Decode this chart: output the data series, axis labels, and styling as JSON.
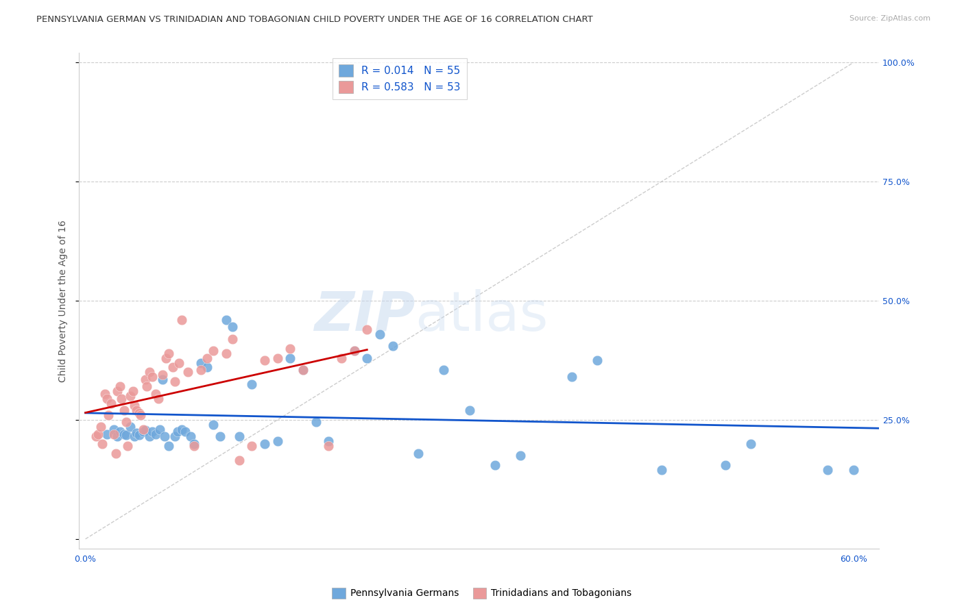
{
  "title": "PENNSYLVANIA GERMAN VS TRINIDADIAN AND TOBAGONIAN CHILD POVERTY UNDER THE AGE OF 16 CORRELATION CHART",
  "source": "Source: ZipAtlas.com",
  "ylabel": "Child Poverty Under the Age of 16",
  "xlim": [
    -0.005,
    0.62
  ],
  "ylim": [
    -0.02,
    1.02
  ],
  "blue_color": "#6fa8dc",
  "pink_color": "#ea9999",
  "blue_line_color": "#1155cc",
  "pink_line_color": "#cc0000",
  "diagonal_color": "#c0c0c0",
  "legend_label1": "Pennsylvania Germans",
  "legend_label2": "Trinidadians and Tobagonians",
  "watermark_zip": "ZIP",
  "watermark_atlas": "atlas",
  "title_fontsize": 9.5,
  "source_fontsize": 8,
  "axis_label_fontsize": 10,
  "tick_fontsize": 9,
  "legend_fontsize": 11,
  "blue_x": [
    0.017,
    0.022,
    0.025,
    0.027,
    0.03,
    0.032,
    0.035,
    0.038,
    0.04,
    0.042,
    0.045,
    0.047,
    0.05,
    0.052,
    0.055,
    0.058,
    0.06,
    0.062,
    0.065,
    0.07,
    0.072,
    0.075,
    0.078,
    0.082,
    0.085,
    0.09,
    0.095,
    0.1,
    0.105,
    0.11,
    0.115,
    0.12,
    0.13,
    0.14,
    0.15,
    0.16,
    0.17,
    0.18,
    0.19,
    0.21,
    0.22,
    0.23,
    0.24,
    0.26,
    0.28,
    0.3,
    0.32,
    0.34,
    0.38,
    0.4,
    0.45,
    0.5,
    0.52,
    0.58,
    0.6
  ],
  "blue_y": [
    0.22,
    0.23,
    0.215,
    0.225,
    0.22,
    0.218,
    0.235,
    0.215,
    0.222,
    0.218,
    0.225,
    0.228,
    0.215,
    0.225,
    0.22,
    0.23,
    0.335,
    0.215,
    0.195,
    0.215,
    0.225,
    0.23,
    0.225,
    0.215,
    0.2,
    0.37,
    0.36,
    0.24,
    0.215,
    0.46,
    0.445,
    0.215,
    0.325,
    0.2,
    0.205,
    0.38,
    0.355,
    0.245,
    0.205,
    0.395,
    0.38,
    0.43,
    0.405,
    0.18,
    0.355,
    0.27,
    0.155,
    0.175,
    0.34,
    0.375,
    0.145,
    0.155,
    0.2,
    0.145,
    0.145
  ],
  "pink_x": [
    0.008,
    0.01,
    0.012,
    0.013,
    0.015,
    0.017,
    0.018,
    0.02,
    0.022,
    0.024,
    0.025,
    0.027,
    0.028,
    0.03,
    0.032,
    0.033,
    0.035,
    0.037,
    0.038,
    0.04,
    0.042,
    0.043,
    0.045,
    0.047,
    0.048,
    0.05,
    0.052,
    0.055,
    0.057,
    0.06,
    0.063,
    0.065,
    0.068,
    0.07,
    0.073,
    0.075,
    0.08,
    0.085,
    0.09,
    0.095,
    0.1,
    0.11,
    0.115,
    0.12,
    0.13,
    0.14,
    0.15,
    0.16,
    0.17,
    0.19,
    0.2,
    0.21,
    0.22
  ],
  "pink_y": [
    0.215,
    0.22,
    0.235,
    0.2,
    0.305,
    0.295,
    0.26,
    0.285,
    0.22,
    0.18,
    0.31,
    0.32,
    0.295,
    0.27,
    0.245,
    0.195,
    0.3,
    0.31,
    0.28,
    0.27,
    0.265,
    0.26,
    0.23,
    0.335,
    0.32,
    0.35,
    0.34,
    0.305,
    0.295,
    0.345,
    0.38,
    0.39,
    0.36,
    0.33,
    0.37,
    0.46,
    0.35,
    0.195,
    0.355,
    0.38,
    0.395,
    0.39,
    0.42,
    0.165,
    0.195,
    0.375,
    0.38,
    0.4,
    0.355,
    0.195,
    0.38,
    0.395,
    0.44
  ]
}
